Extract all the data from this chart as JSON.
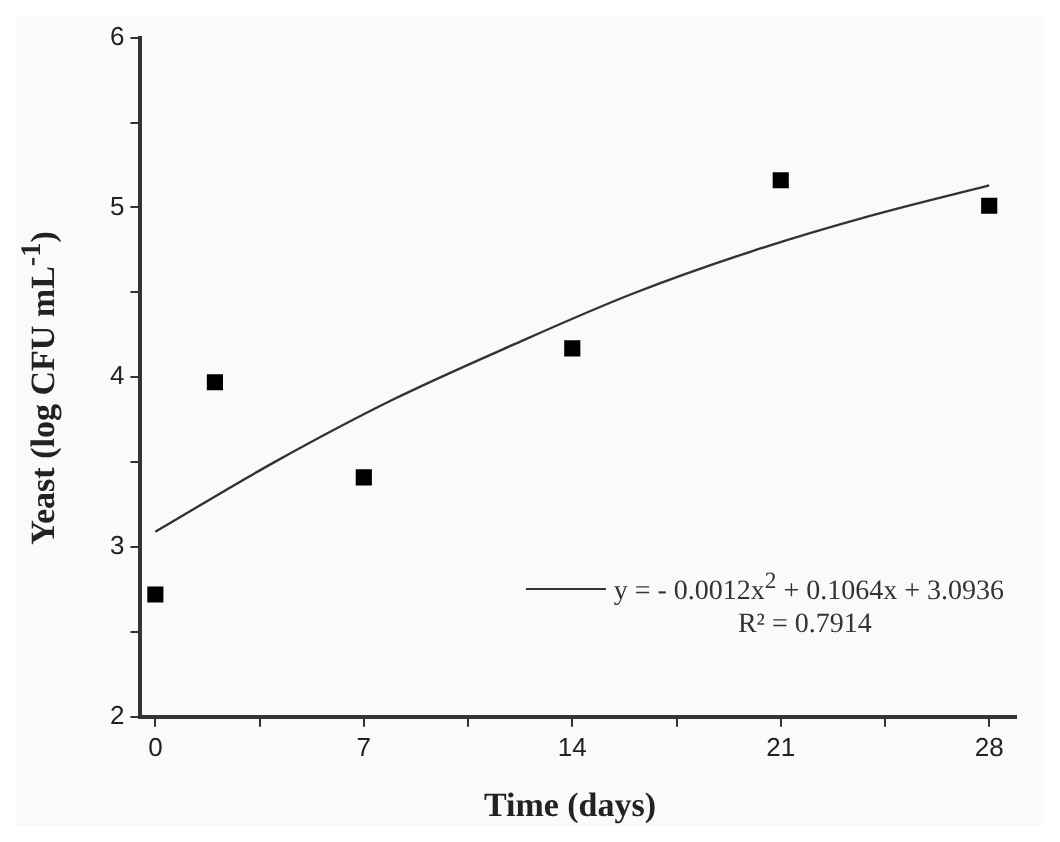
{
  "chart_data": {
    "type": "scatter",
    "xlabel": "Time (days)",
    "ylabel": "Yeast (log CFU mL$^{-1}$)",
    "xlim": [
      -0.5,
      28.9
    ],
    "ylim": [
      2,
      6
    ],
    "xticks": [
      0,
      {
        "value": 3.5,
        "label": null
      },
      7,
      {
        "value": 10.5,
        "label": null
      },
      14,
      {
        "value": 17.5,
        "label": null
      },
      21,
      {
        "value": 24.5,
        "label": null
      },
      28
    ],
    "yticks": [
      2,
      {
        "value": 2.5,
        "label": null
      },
      3,
      {
        "value": 3.5,
        "label": null
      },
      4,
      {
        "value": 4.5,
        "label": null
      },
      5,
      {
        "value": 5.5,
        "label": null
      },
      6
    ],
    "marker": "square",
    "legend": "bottom right",
    "series": [
      {
        "color": "#000000",
        "x": [
          0,
          2,
          7,
          14,
          21,
          28
        ],
        "values": [
          2.72,
          3.97,
          3.41,
          4.17,
          5.16,
          5.01
        ]
      },
      {
        "type": "line",
        "name": "y = - 0.0012x$^{2}$ + 0.1064x + 3.0936",
        "color": "#333333",
        "line_style": "solid",
        "marker": "none",
        "x": [
          0,
          4,
          8,
          12,
          16,
          20,
          24,
          28
        ],
        "values": [
          3.09,
          3.5,
          3.87,
          4.19,
          4.49,
          4.74,
          4.95,
          5.13
        ]
      }
    ],
    "annotations": [
      "R² = 0.7914"
    ]
  }
}
